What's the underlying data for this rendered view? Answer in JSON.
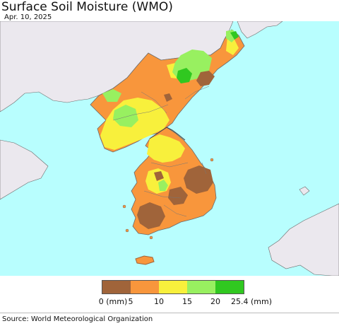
{
  "title": "Surface Soil Moisture (WMO)",
  "date": "Apr. 10, 2025",
  "legend": {
    "colors": [
      "#a0643a",
      "#f8963c",
      "#f8f03c",
      "#98f060",
      "#30c820"
    ],
    "labels": [
      "0 (mm)",
      "5",
      "10",
      "15",
      "20",
      "25.4 (mm)"
    ]
  },
  "source": "Source: World Meteorological Organization",
  "colors": {
    "sea": "#b8fefe",
    "other_land": "#ebe8ee",
    "border": "#6a6a6a"
  }
}
